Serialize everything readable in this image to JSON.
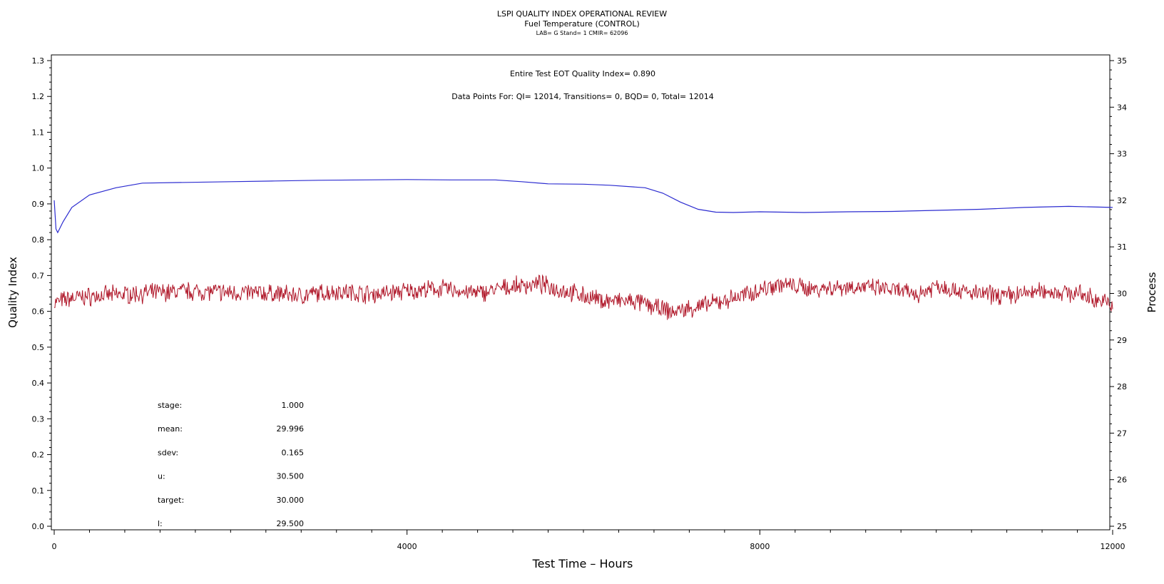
{
  "chart_data": {
    "type": "line",
    "title": "LSPI QUALITY INDEX OPERATIONAL REVIEW",
    "subtitle": "Fuel Temperature (CONTROL)",
    "subtitle2": "LAB= G Stand= 1 CMIR= 62096",
    "xlabel": "Test Time – Hours",
    "ylabel_left": "Quality Index",
    "ylabel_right": "Process",
    "xlim": [
      0,
      12000
    ],
    "ylim_left": [
      0,
      1.3
    ],
    "ylim_right": [
      25,
      35
    ],
    "x_ticks": [
      "0",
      "4000",
      "8000",
      "12000"
    ],
    "y_left_ticks": [
      "0.0",
      "0.1",
      "0.2",
      "0.3",
      "0.4",
      "0.5",
      "0.6",
      "0.7",
      "0.8",
      "0.9",
      "1.0",
      "1.1",
      "1.2",
      "1.3"
    ],
    "y_right_ticks": [
      "25",
      "26",
      "27",
      "28",
      "29",
      "30",
      "31",
      "32",
      "33",
      "34",
      "35"
    ],
    "annotations": {
      "eot": "Entire Test EOT Quality Index=   0.890",
      "points": "Data Points For: QI= 12014, Transitions=     0, BQD=     0, Total= 12014"
    },
    "stats": [
      {
        "label": "stage:",
        "value": "1.000"
      },
      {
        "label": "mean:",
        "value": "29.996"
      },
      {
        "label": "sdev:",
        "value": "0.165"
      },
      {
        "label": "u:",
        "value": "30.500"
      },
      {
        "label": "target:",
        "value": "30.000"
      },
      {
        "label": "l:",
        "value": "29.500"
      }
    ],
    "series": [
      {
        "axis": "left",
        "color": "#2b2bd0",
        "x": [
          0,
          20,
          40,
          60,
          100,
          200,
          400,
          700,
          1000,
          1500,
          2000,
          2500,
          3000,
          3500,
          4000,
          4500,
          5000,
          5300,
          5600,
          6000,
          6300,
          6700,
          6900,
          7100,
          7300,
          7500,
          7700,
          8000,
          8500,
          9000,
          9500,
          10000,
          10500,
          11000,
          11500,
          12000
        ],
        "y": [
          0.91,
          0.83,
          0.82,
          0.83,
          0.85,
          0.89,
          0.925,
          0.945,
          0.958,
          0.96,
          0.962,
          0.964,
          0.966,
          0.967,
          0.968,
          0.967,
          0.967,
          0.962,
          0.956,
          0.955,
          0.952,
          0.945,
          0.93,
          0.905,
          0.885,
          0.877,
          0.876,
          0.878,
          0.876,
          0.878,
          0.879,
          0.882,
          0.885,
          0.89,
          0.893,
          0.89
        ]
      },
      {
        "axis": "right",
        "color": "#b0182a",
        "x": [
          0,
          200,
          500,
          1000,
          1500,
          2000,
          2500,
          2800,
          3200,
          3600,
          4000,
          4400,
          4800,
          5200,
          5500,
          5800,
          6200,
          6600,
          7000,
          7400,
          7800,
          8200,
          8600,
          9000,
          9400,
          9800,
          10000,
          10400,
          10800,
          11200,
          11600,
          11850,
          12000
        ],
        "y": [
          29.8,
          29.9,
          29.95,
          30.0,
          30.05,
          30.02,
          30.0,
          29.95,
          30.05,
          29.98,
          30.05,
          30.1,
          30.0,
          30.15,
          30.2,
          30.05,
          29.85,
          29.82,
          29.6,
          29.75,
          29.95,
          30.2,
          30.1,
          30.15,
          30.1,
          29.98,
          30.18,
          30.0,
          29.95,
          30.05,
          30.0,
          29.85,
          29.75
        ]
      }
    ]
  }
}
